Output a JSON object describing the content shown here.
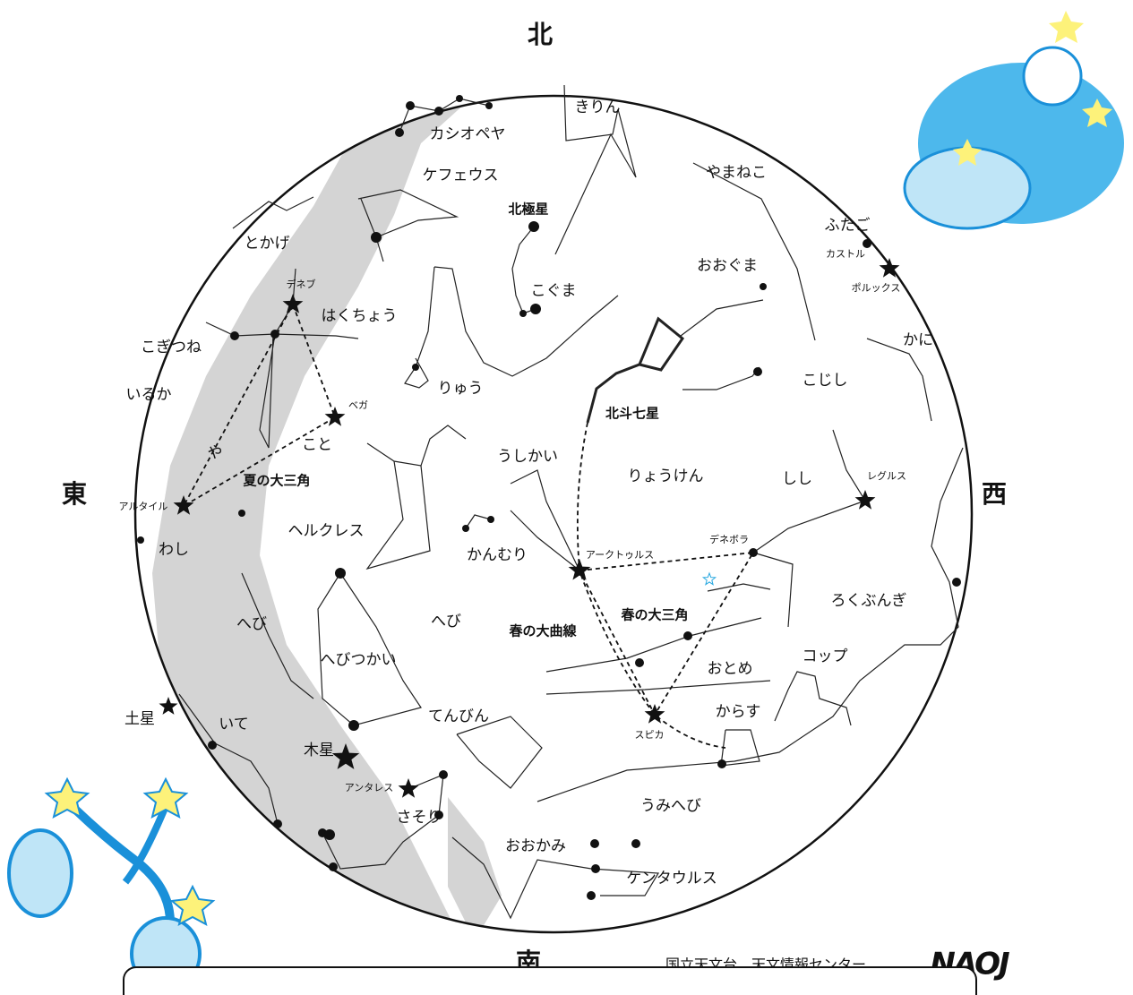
{
  "directions": {
    "north": "北",
    "east": "東",
    "west": "西",
    "south": "南"
  },
  "labels": [
    "カシオペヤ",
    "きりん",
    "ケフェウス",
    "やまねこ",
    "北極星",
    "ふたご",
    "カストル",
    "ポルックス",
    "とかげ",
    "おおぐま",
    "デネブ",
    "こぐま",
    "はくちょう",
    "かに",
    "こぎつね",
    "こじし",
    "りゅう",
    "いるか",
    "ベガ",
    "北斗七星",
    "こと",
    "や",
    "うしかい",
    "りょうけん",
    "夏の大三角",
    "しし",
    "レグルス",
    "アルタイル",
    "わし",
    "ヘルクレス",
    "デネボラ",
    "アークトゥルス",
    "かんむり",
    "ろくぶんぎ",
    "へび",
    "春の大三角",
    "へび",
    "春の大曲線",
    "へびつかい",
    "おとめ",
    "コップ",
    "土星",
    "いて",
    "てんびん",
    "からす",
    "スピカ",
    "木星",
    "アンタレス",
    "さそり",
    "うみへび",
    "おおかみ",
    "ケンタウルス"
  ],
  "footer": {
    "credit": "国立天文台　天文情報センター",
    "logo": "NAOJ"
  }
}
